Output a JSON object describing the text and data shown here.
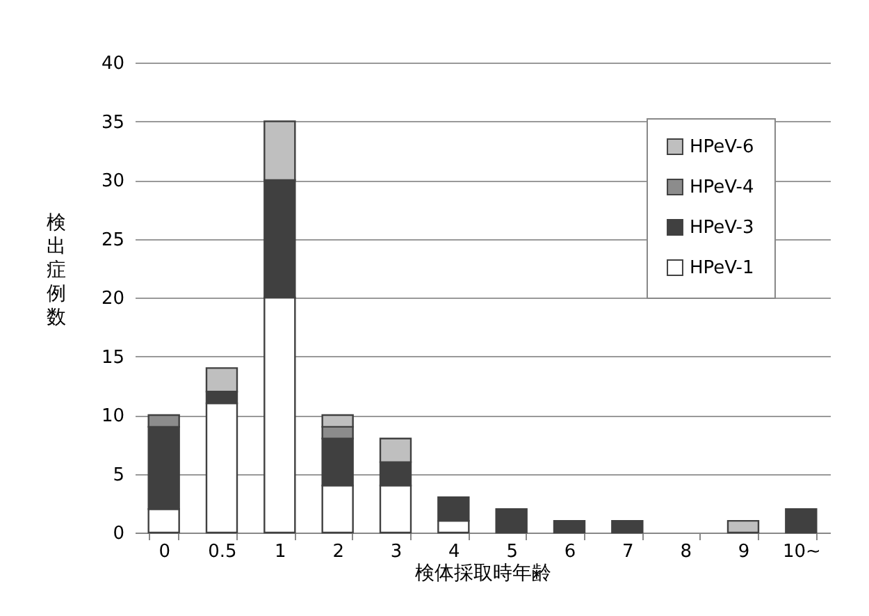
{
  "chart_data": {
    "type": "bar",
    "stacked": true,
    "xlabel": "検体採取時年齢",
    "ylabel": "検出症例数",
    "categories": [
      "0",
      "0.5",
      "1",
      "2",
      "3",
      "4",
      "5",
      "6",
      "7",
      "8",
      "9",
      "10~"
    ],
    "series": [
      {
        "name": "HPeV-1",
        "color": "#ffffff",
        "values": [
          2,
          11,
          20,
          4,
          4,
          1,
          0,
          0,
          0,
          0,
          0,
          0
        ]
      },
      {
        "name": "HPeV-3",
        "color": "#404040",
        "values": [
          7,
          1,
          10,
          4,
          2,
          2,
          2,
          1,
          1,
          0,
          0,
          2
        ]
      },
      {
        "name": "HPeV-4",
        "color": "#8c8c8c",
        "values": [
          1,
          0,
          0,
          1,
          0,
          0,
          0,
          0,
          0,
          0,
          0,
          0
        ]
      },
      {
        "name": "HPeV-6",
        "color": "#bfbfbf",
        "values": [
          0,
          2,
          5,
          1,
          2,
          0,
          0,
          0,
          0,
          0,
          1,
          0
        ]
      }
    ],
    "ylim": [
      0,
      40
    ],
    "yticks": [
      0,
      5,
      10,
      15,
      20,
      25,
      30,
      35,
      40
    ],
    "grid": "y",
    "legend": "top right"
  }
}
